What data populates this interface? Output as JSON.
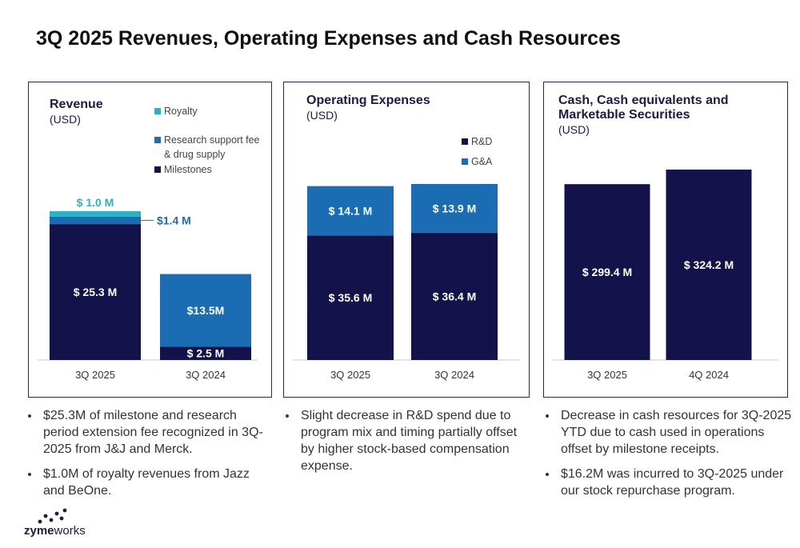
{
  "title": "3Q 2025 Revenues, Operating Expenses and Cash Resources",
  "chart_data": [
    {
      "type": "bar",
      "stacked": true,
      "title": "Revenue",
      "subtitle": "(USD)",
      "legend_reversed": true,
      "categories": [
        "3Q 2025",
        "3Q 2024"
      ],
      "series": [
        {
          "name": "Milestones",
          "color": "#14124a",
          "values": [
            25.3,
            2.5
          ],
          "value_labels": [
            "$ 25.3 M",
            "$ 2.5 M"
          ]
        },
        {
          "name": "Research support fee & drug supply",
          "color": "#1b6db3",
          "values": [
            1.4,
            13.5
          ],
          "value_labels": [
            "$1.4 M",
            "$13.5M"
          ]
        },
        {
          "name": "Royalty",
          "color": "#29b3c9",
          "values": [
            1.0,
            null
          ],
          "value_labels": [
            "$ 1.0 M",
            null
          ]
        }
      ]
    },
    {
      "type": "bar",
      "stacked": true,
      "title": "Operating Expenses",
      "subtitle": "(USD)",
      "categories": [
        "3Q 2025",
        "3Q 2024"
      ],
      "series": [
        {
          "name": "R&D",
          "color": "#14124a",
          "values": [
            35.6,
            36.4
          ],
          "value_labels": [
            "$ 35.6 M",
            "$ 36.4 M"
          ]
        },
        {
          "name": "G&A",
          "color": "#1b6db3",
          "values": [
            14.1,
            13.9
          ],
          "value_labels": [
            "$ 14.1 M",
            "$ 13.9 M"
          ]
        }
      ]
    },
    {
      "type": "bar",
      "title": "Cash, Cash equivalents and Marketable Securities",
      "subtitle": "(USD)",
      "categories": [
        "3Q 2025",
        "4Q 2024"
      ],
      "color": "#14124a",
      "values": [
        299.4,
        324.2
      ],
      "value_labels": [
        "$ 299.4 M",
        "$ 324.2 M"
      ]
    }
  ],
  "notes": [
    [
      "$25.3M of milestone and research period extension fee recognized in 3Q-2025 from J&J and Merck.",
      "$1.0M of royalty revenues from Jazz and BeOne."
    ],
    [
      "Slight decrease in R&D spend due to program mix and timing partially offset by higher stock-based compensation expense."
    ],
    [
      "Decrease in cash resources for 3Q-2025 YTD due to cash used in operations offset by milestone receipts.",
      "$16.2M was incurred to 3Q-2025 under our stock repurchase program."
    ]
  ],
  "logo": {
    "bold": "zyme",
    "light": "works"
  }
}
